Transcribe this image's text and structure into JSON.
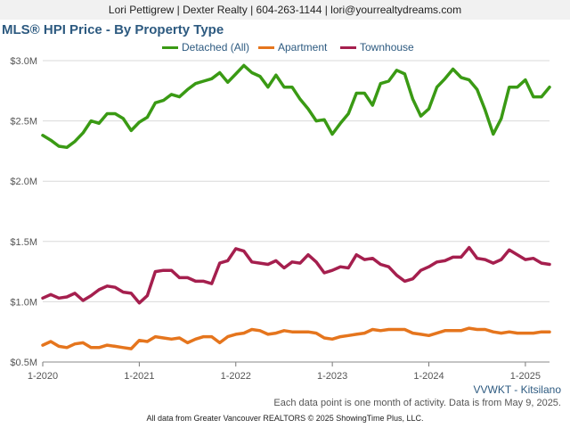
{
  "header": {
    "text": "Lori Pettigrew | Dexter Realty | 604-263-1144 | lori@yourrealtydreams.com"
  },
  "chart_data": {
    "type": "line",
    "title": "MLS® HPI Price - By Property Type",
    "xlabel": "",
    "ylabel": "",
    "ylim": [
      500000,
      3000000
    ],
    "y_ticks": [
      500000,
      1000000,
      1500000,
      2000000,
      2500000,
      3000000
    ],
    "y_tick_labels": [
      "$0.5M",
      "$1.0M",
      "$1.5M",
      "$2.0M",
      "$2.5M",
      "$3.0M"
    ],
    "x_ticks": [
      0,
      12,
      24,
      36,
      48,
      60
    ],
    "x_tick_labels": [
      "1-2020",
      "1-2021",
      "1-2022",
      "1-2023",
      "1-2024",
      "1-2025"
    ],
    "grid": true,
    "legend_position": "top",
    "series": [
      {
        "name": "Detached (All)",
        "color": "#3a9a14",
        "values": [
          2380000,
          2340000,
          2290000,
          2280000,
          2330000,
          2400000,
          2500000,
          2480000,
          2560000,
          2560000,
          2520000,
          2420000,
          2490000,
          2530000,
          2650000,
          2670000,
          2720000,
          2700000,
          2760000,
          2810000,
          2830000,
          2850000,
          2900000,
          2820000,
          2890000,
          2960000,
          2900000,
          2870000,
          2780000,
          2880000,
          2780000,
          2780000,
          2680000,
          2600000,
          2500000,
          2510000,
          2390000,
          2480000,
          2560000,
          2730000,
          2730000,
          2630000,
          2810000,
          2830000,
          2920000,
          2890000,
          2680000,
          2540000,
          2600000,
          2780000,
          2850000,
          2930000,
          2860000,
          2840000,
          2760000,
          2590000,
          2390000,
          2520000,
          2780000,
          2780000,
          2840000,
          2700000,
          2700000,
          2780000
        ]
      },
      {
        "name": "Apartment",
        "color": "#e5751d",
        "values": [
          640000,
          670000,
          630000,
          620000,
          650000,
          660000,
          620000,
          620000,
          640000,
          630000,
          620000,
          610000,
          680000,
          670000,
          710000,
          700000,
          690000,
          700000,
          660000,
          690000,
          710000,
          710000,
          660000,
          710000,
          730000,
          740000,
          770000,
          760000,
          730000,
          740000,
          760000,
          750000,
          750000,
          750000,
          740000,
          700000,
          690000,
          710000,
          720000,
          730000,
          740000,
          770000,
          760000,
          770000,
          770000,
          770000,
          740000,
          730000,
          720000,
          740000,
          760000,
          760000,
          760000,
          780000,
          770000,
          770000,
          750000,
          740000,
          750000,
          740000,
          740000,
          740000,
          750000,
          750000
        ]
      },
      {
        "name": "Townhouse",
        "color": "#a51f4e",
        "values": [
          1030000,
          1060000,
          1030000,
          1040000,
          1070000,
          1010000,
          1050000,
          1100000,
          1130000,
          1120000,
          1080000,
          1070000,
          990000,
          1050000,
          1250000,
          1260000,
          1260000,
          1200000,
          1200000,
          1170000,
          1170000,
          1150000,
          1320000,
          1340000,
          1440000,
          1420000,
          1330000,
          1320000,
          1310000,
          1340000,
          1280000,
          1330000,
          1320000,
          1390000,
          1330000,
          1240000,
          1260000,
          1290000,
          1280000,
          1390000,
          1350000,
          1360000,
          1310000,
          1290000,
          1220000,
          1170000,
          1190000,
          1260000,
          1290000,
          1330000,
          1340000,
          1370000,
          1370000,
          1450000,
          1360000,
          1350000,
          1320000,
          1350000,
          1430000,
          1390000,
          1350000,
          1360000,
          1320000,
          1310000
        ]
      }
    ]
  },
  "notes": {
    "subtitle": "VVWKT - Kitsilano",
    "line1": "Each data point is one month of activity. Data is from May 9, 2025.",
    "line2": "All data from Greater Vancouver REALTORS © 2025 ShowingTime Plus, LLC."
  }
}
